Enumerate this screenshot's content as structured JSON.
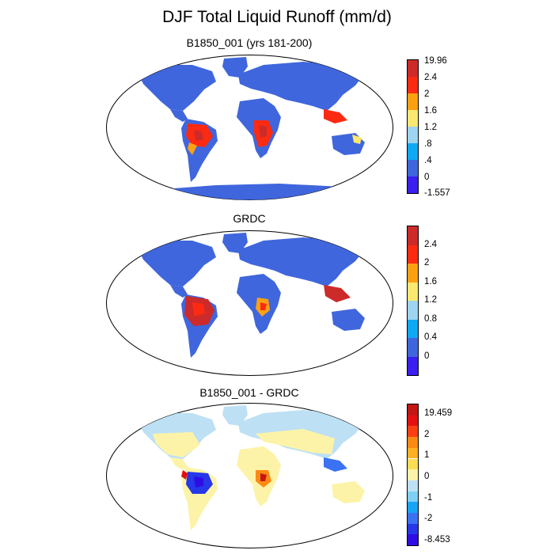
{
  "title": "DJF Total Liquid Runoff (mm/d)",
  "colors": {
    "abs_palette": [
      "#3a1ff0",
      "#3f66dc",
      "#0fa8f5",
      "#9fd4f0",
      "#fbe870",
      "#fca012",
      "#fd2a12",
      "#cd2a2a"
    ],
    "diff_palette": [
      "#2f0ce6",
      "#2638e8",
      "#3a72f2",
      "#18a4f4",
      "#7fd0f5",
      "#bde0f4",
      "#fdf3a8",
      "#fbdc55",
      "#fcb022",
      "#fb8a12",
      "#fc3f12",
      "#e41010",
      "#c31616"
    ],
    "ocean": "#ffffff",
    "coastline": "#000000"
  },
  "panels": [
    {
      "title": "B1850_001 (yrs 181-200)",
      "colorbar_labels": [
        "19.96",
        "2.4",
        "2",
        "1.6",
        "1.2",
        ".8",
        ".4",
        "0",
        "-1.557"
      ],
      "levels": [
        -1.557,
        0,
        0.4,
        0.8,
        1.2,
        1.6,
        2,
        2.4,
        19.96
      ]
    },
    {
      "title": "GRDC",
      "colorbar_labels": [
        "2.4",
        "2",
        "1.6",
        "1.2",
        "0.8",
        "0.4",
        "0"
      ],
      "levels": [
        0,
        0.4,
        0.8,
        1.2,
        1.6,
        2,
        2.4
      ]
    },
    {
      "title": "B1850_001 - GRDC",
      "colorbar_labels": [
        "19.459",
        "2",
        "1",
        "0",
        "-1",
        "-2",
        "-8.453"
      ],
      "levels": [
        -8.453,
        -2,
        -1,
        0,
        1,
        2,
        19.459
      ]
    }
  ]
}
